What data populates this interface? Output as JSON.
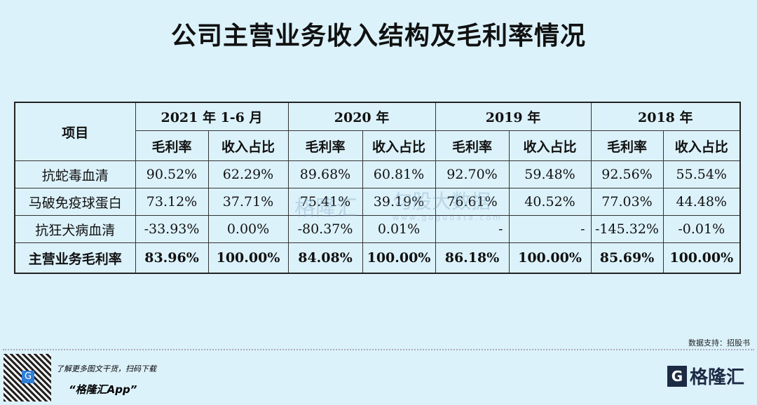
{
  "title": "公司主营业务收入结构及毛利率情况",
  "table": {
    "item_header": "项目",
    "periods": [
      "2021 年 1-6 月",
      "2020 年",
      "2019 年",
      "2018 年"
    ],
    "sub_headers": [
      "毛利率",
      "收入占比"
    ],
    "rows": [
      {
        "name": "抗蛇毒血清",
        "values": [
          "90.52%",
          "62.29%",
          "89.68%",
          "60.81%",
          "92.70%",
          "59.48%",
          "92.56%",
          "55.54%"
        ]
      },
      {
        "name": "马破免疫球蛋白",
        "values": [
          "73.12%",
          "37.71%",
          "75.41%",
          "39.19%",
          "76.61%",
          "40.52%",
          "77.03%",
          "44.48%"
        ]
      },
      {
        "name": "抗狂犬病血清",
        "values": [
          "-33.93%",
          "0.00%",
          "-80.37%",
          "0.01%",
          "-",
          "-",
          "-145.32%",
          "-0.01%"
        ]
      },
      {
        "name": "主营业务毛利率",
        "values": [
          "83.96%",
          "100.00%",
          "84.08%",
          "100.00%",
          "86.18%",
          "100.00%",
          "85.69%",
          "100.00%"
        ]
      }
    ]
  },
  "watermark": {
    "brand": "格隆汇",
    "site": "www.gogudata.com",
    "text": "勾股大数据"
  },
  "source": "数据支持：招股书",
  "promo": {
    "line1": "了解更多图文干货，扫码下载",
    "line2": "“格隆汇App”"
  },
  "logo": {
    "text": "格隆汇",
    "icon": "G"
  }
}
